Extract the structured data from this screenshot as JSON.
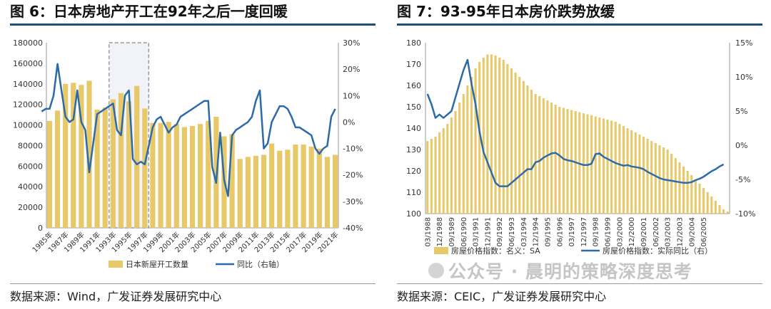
{
  "left_panel": {
    "title": "图 6：日本房地产开工在92年之后一度回暖",
    "source": "数据来源：Wind，广发证券发展研究中心",
    "chart_data": {
      "type": "bar+line",
      "x_tick_labels": [
        "1985年",
        "1987年",
        "1989年",
        "1991年",
        "1993年",
        "1995年",
        "1997年",
        "1999年",
        "2001年",
        "2003年",
        "2005年",
        "2007年",
        "2009年",
        "2011年",
        "2013年",
        "2015年",
        "2017年",
        "2019年",
        "2021年"
      ],
      "left_axis": {
        "ticks": [
          "0",
          "20000",
          "40000",
          "60000",
          "80000",
          "100000",
          "120000",
          "140000",
          "160000",
          "180000"
        ],
        "min": 0,
        "max": 180000
      },
      "right_axis": {
        "ticks": [
          "-40%",
          "-30%",
          "-20%",
          "-10%",
          "0%",
          "10%",
          "20%",
          "30%"
        ],
        "min": -40,
        "max": 30
      },
      "series": [
        {
          "name": "日本新屋开工数量",
          "kind": "bar",
          "color": "#e8c96a",
          "x": [
            1985,
            1986,
            1987,
            1988,
            1989,
            1990,
            1991,
            1992,
            1993,
            1994,
            1995,
            1996,
            1997,
            1998,
            1999,
            2000,
            2001,
            2002,
            2003,
            2004,
            2005,
            2006,
            2007,
            2008,
            2009,
            2010,
            2011,
            2012,
            2013,
            2014,
            2015,
            2016,
            2017,
            2018,
            2019,
            2020,
            2021
          ],
          "values": [
            104000,
            114000,
            140000,
            141000,
            139000,
            143000,
            115000,
            117000,
            125000,
            131000,
            123000,
            138000,
            116000,
            102000,
            102000,
            103000,
            101000,
            98000,
            99000,
            101000,
            104000,
            108000,
            89000,
            91000,
            67000,
            69000,
            70000,
            71000,
            82000,
            75000,
            76000,
            81000,
            81000,
            79000,
            77000,
            69000,
            71000
          ]
        },
        {
          "name": "同比（右轴）",
          "kind": "line",
          "axis": "right",
          "color": "#2d6ba8",
          "x": [
            1984.0,
            1984.5,
            1985.0,
            1985.5,
            1986.0,
            1986.5,
            1987.0,
            1987.5,
            1988.0,
            1988.5,
            1989.0,
            1989.5,
            1990.0,
            1990.5,
            1991.0,
            1991.5,
            1992.0,
            1992.5,
            1993.0,
            1993.5,
            1994.0,
            1994.5,
            1995.0,
            1995.5,
            1996.0,
            1996.5,
            1997.0,
            1997.5,
            1998.0,
            1998.5,
            1999.0,
            1999.5,
            2000.0,
            2000.5,
            2001.0,
            2001.5,
            2002.0,
            2002.5,
            2003.0,
            2003.5,
            2004.0,
            2004.5,
            2005.0,
            2005.5,
            2006.0,
            2006.5,
            2007.0,
            2007.5,
            2008.0,
            2008.5,
            2009.0,
            2009.5,
            2010.0,
            2010.5,
            2011.0,
            2011.5,
            2012.0,
            2012.5,
            2013.0,
            2013.5,
            2014.0,
            2014.5,
            2015.0,
            2015.5,
            2016.0,
            2016.5,
            2017.0,
            2017.5,
            2018.0,
            2018.5,
            2019.0,
            2019.5,
            2020.0,
            2020.5,
            2021.0
          ],
          "values": [
            4,
            5,
            5,
            10,
            22,
            12,
            2,
            0,
            1,
            12,
            0,
            -3,
            -19,
            -8,
            3,
            4,
            5,
            6,
            7,
            -3,
            -5,
            10,
            12,
            -14,
            -16,
            -15,
            -16,
            -9,
            -2,
            1,
            2,
            -1,
            -4,
            -2,
            -1,
            2,
            3,
            4,
            5,
            6,
            7,
            8,
            8,
            -17,
            -23,
            -4,
            -22,
            -28,
            -5,
            -3,
            -2,
            -1,
            0,
            2,
            8,
            12,
            -10,
            -8,
            0,
            3,
            6,
            6,
            5,
            2,
            -2,
            -2,
            -3,
            -4,
            -5,
            -10,
            -12,
            -10,
            -9,
            2,
            5
          ]
        }
      ],
      "highlight_box": {
        "from": "1993年",
        "to": "1997年",
        "style": "dashed"
      }
    }
  },
  "right_panel": {
    "title": "图 7：93-95年日本房价跌势放缓",
    "source": "数据来源：CEIC，广发证券发展研究中心",
    "chart_data": {
      "type": "bar+line",
      "x_tick_labels": [
        "03/1988",
        "12/1988",
        "09/1989",
        "06/1990",
        "03/1991",
        "12/1991",
        "09/1992",
        "06/1993",
        "03/1994",
        "12/1994",
        "09/1995",
        "06/1996",
        "03/1997",
        "12/1997",
        "09/1998",
        "06/1999",
        "03/2000",
        "12/2000",
        "09/2001",
        "06/2002",
        "03/2003",
        "12/2003",
        "09/2004",
        "06/2005"
      ],
      "left_axis": {
        "ticks": [
          "100",
          "110",
          "120",
          "130",
          "140",
          "150",
          "160",
          "170",
          "180"
        ],
        "min": 100,
        "max": 180
      },
      "right_axis": {
        "ticks": [
          "-10%",
          "-5%",
          "0%",
          "5%",
          "10%",
          "15%"
        ],
        "min": -10,
        "max": 15
      },
      "series": [
        {
          "name": "房屋价格指数：名义：SA",
          "kind": "bar",
          "color": "#e8c96a",
          "start": "03/1988",
          "step_months": 3,
          "values": [
            134,
            135,
            136,
            138,
            140,
            142,
            145,
            148,
            152,
            156,
            160,
            164,
            168,
            171,
            173,
            174.5,
            174.5,
            174,
            173,
            172,
            170,
            168,
            166,
            164,
            162,
            160,
            158,
            156,
            155,
            154,
            153,
            152,
            151,
            150,
            149.5,
            149,
            148.5,
            148,
            147.5,
            147,
            146.5,
            146,
            145.5,
            145,
            144.5,
            144,
            143.5,
            143,
            142,
            141,
            140,
            139,
            138,
            137,
            136,
            135,
            134,
            133,
            132,
            131,
            130,
            128,
            126,
            124,
            122,
            120,
            118,
            116,
            114,
            112,
            110,
            108,
            106,
            104,
            102,
            101
          ]
        },
        {
          "name": "房屋价格指数：实际同比（右）",
          "kind": "line",
          "axis": "right",
          "color": "#2d6ba8",
          "start": "03/1988",
          "step_months": 3,
          "values": [
            7.5,
            6,
            4,
            4.5,
            4,
            4.5,
            5,
            7,
            9,
            11,
            12.5,
            9,
            6,
            2,
            -1,
            -2.5,
            -4,
            -5.5,
            -6,
            -6,
            -6,
            -5.5,
            -5,
            -4.5,
            -4,
            -3.5,
            -3.5,
            -2.5,
            -2.3,
            -1.8,
            -1.5,
            -1.2,
            -1.1,
            -1.5,
            -2,
            -2.2,
            -2.3,
            -2.5,
            -2.7,
            -2.9,
            -2.9,
            -2.7,
            -1.3,
            -1.2,
            -1.7,
            -2,
            -2.3,
            -2.6,
            -2.8,
            -3.0,
            -2.9,
            -3.1,
            -3.2,
            -3.3,
            -3.5,
            -3.9,
            -4.2,
            -4.5,
            -4.8,
            -5.0,
            -5.1,
            -5.2,
            -5.3,
            -5.4,
            -5.5,
            -5.5,
            -5.4,
            -5.1,
            -4.9,
            -4.6,
            -4.2,
            -3.8,
            -3.5,
            -3.1,
            -2.8
          ]
        }
      ]
    }
  },
  "watermark": {
    "text": "公众号 · 晨明的策略深度思考"
  },
  "colors": {
    "bar": "#e8c96a",
    "line": "#2d6ba8",
    "rule": "#1f4e79",
    "highlight_box": "#888888"
  }
}
